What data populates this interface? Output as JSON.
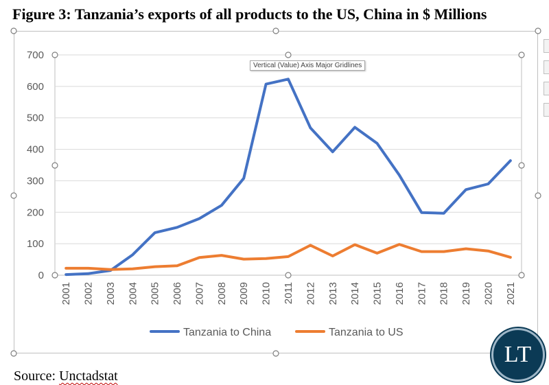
{
  "figure_title": "Figure 3: Tanzania’s exports of all products to the US, China in $ Millions",
  "source_label": "Source: ",
  "source_name": "Unctadstat",
  "tooltip": "Vertical (Value) Axis Major Gridlines",
  "logo_text": "LT",
  "colors": {
    "china": "#4472c4",
    "us": "#ed7d31",
    "gridline": "#d9d9d9",
    "axis_text": "#595959",
    "logo_bg": "#0b3a55"
  },
  "chart_data": {
    "type": "line",
    "title": "",
    "xlabel": "",
    "ylabel": "",
    "ylim": [
      0,
      700
    ],
    "yticks": [
      0,
      100,
      200,
      300,
      400,
      500,
      600,
      700
    ],
    "grid": true,
    "legend_position": "bottom",
    "categories": [
      "2001",
      "2002",
      "2003",
      "2004",
      "2005",
      "2006",
      "2007",
      "2008",
      "2009",
      "2010",
      "2011",
      "2012",
      "2013",
      "2014",
      "2015",
      "2016",
      "2017",
      "2018",
      "2019",
      "2020",
      "2021"
    ],
    "series": [
      {
        "name": "Tanzania to China",
        "color": "#4472c4",
        "values": [
          2,
          5,
          15,
          65,
          135,
          152,
          180,
          222,
          308,
          607,
          623,
          468,
          392,
          470,
          419,
          318,
          199,
          197,
          272,
          290,
          364
        ]
      },
      {
        "name": "Tanzania to US",
        "color": "#ed7d31",
        "values": [
          22,
          22,
          18,
          20,
          27,
          30,
          56,
          63,
          51,
          53,
          59,
          95,
          61,
          97,
          70,
          98,
          75,
          75,
          84,
          77,
          57
        ]
      }
    ]
  }
}
